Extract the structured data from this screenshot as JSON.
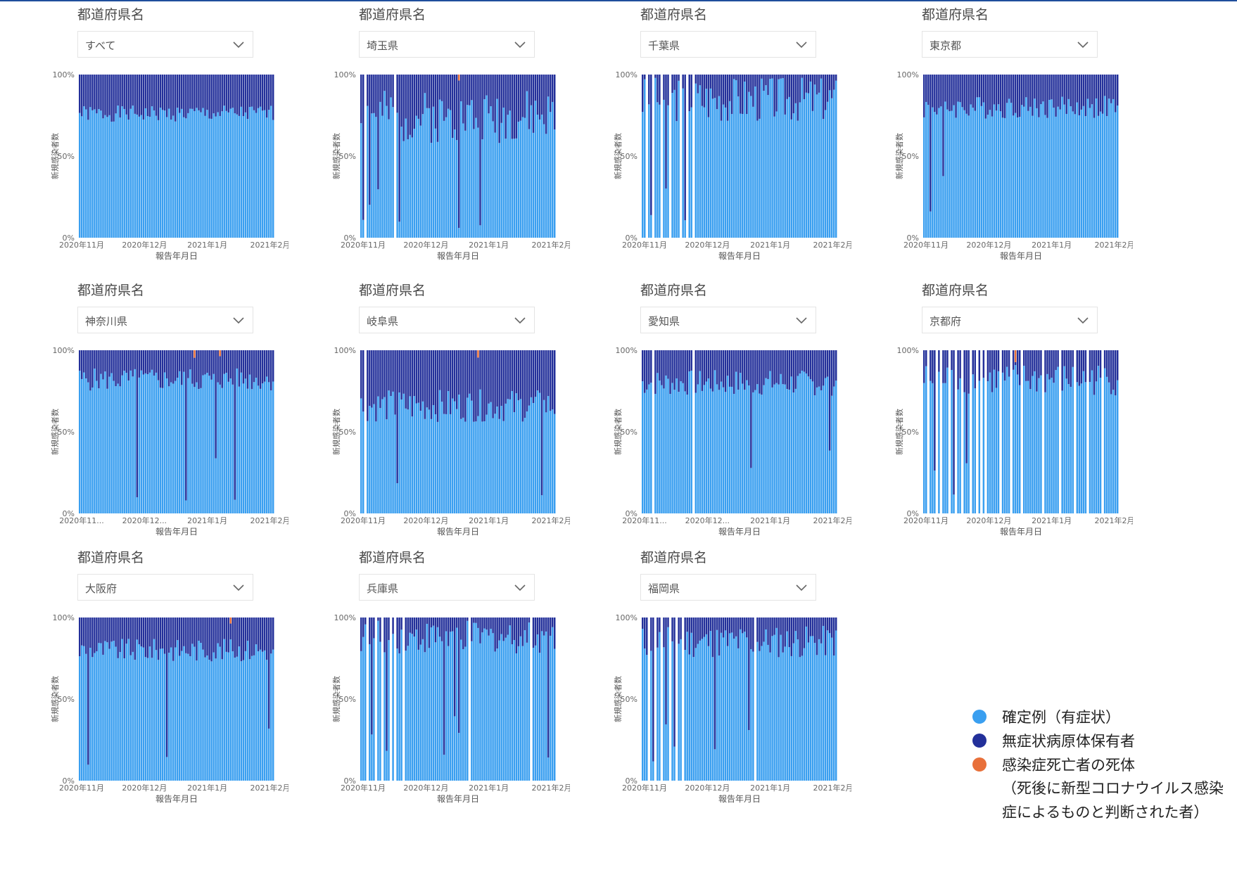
{
  "chart_data": {
    "type": "bar",
    "stacked_percent": true,
    "x_field": "報告年月日",
    "ylabel": "新規感染者数",
    "xlabel": "報告年月日",
    "yticks": [
      "0%",
      "50%",
      "100%"
    ],
    "ylim": [
      0,
      100
    ],
    "xticks_full": [
      "2020年11月",
      "2020年12月",
      "2021年1月",
      "2021年2月"
    ],
    "xticks_truncated": [
      "2020年11...",
      "2020年12...",
      "2021年1月",
      "2021年2月"
    ],
    "series": [
      {
        "name": "確定例（有症状）",
        "color": "#3a9ff0"
      },
      {
        "name": "無症状病原体保有者",
        "color": "#23309a"
      },
      {
        "name": "感染症死亡者の死体",
        "color": "#e8703a"
      }
    ],
    "charts": [
      {
        "slicer_title": "都道府県名",
        "slicer_value": "すべて",
        "truncated_ticks": false,
        "gaps": [],
        "sym_mean": 0.76,
        "sym_var": 0.05,
        "dips": [],
        "dead": [],
        "seed": 1
      },
      {
        "slicer_title": "都道府県名",
        "slicer_value": "埼玉県",
        "truncated_ticks": false,
        "gaps": [
          0.02,
          0.18
        ],
        "sym_mean": 0.74,
        "sym_var": 0.16,
        "dips": [
          0.01,
          0.04,
          0.09,
          0.2,
          0.5,
          0.62
        ],
        "dead": [
          0.51
        ],
        "seed": 2
      },
      {
        "slicer_title": "都道府県名",
        "slicer_value": "千葉県",
        "truncated_ticks": false,
        "gaps": [
          0.02,
          0.06,
          0.1,
          0.14,
          0.2,
          0.23,
          0.26
        ],
        "sym_mean": 0.85,
        "sym_var": 0.14,
        "dips": [
          0.04,
          0.12,
          0.22
        ],
        "dead": [],
        "seed": 3
      },
      {
        "slicer_title": "都道府県名",
        "slicer_value": "東京都",
        "truncated_ticks": false,
        "gaps": [],
        "sym_mean": 0.8,
        "sym_var": 0.07,
        "dips": [
          0.03,
          0.1
        ],
        "dead": [],
        "seed": 4
      },
      {
        "slicer_title": "都道府県名",
        "slicer_value": "神奈川県",
        "truncated_ticks": true,
        "gaps": [],
        "sym_mean": 0.82,
        "sym_var": 0.07,
        "dips": [
          0.3,
          0.55,
          0.7,
          0.8
        ],
        "dead": [
          0.59,
          0.72
        ],
        "seed": 5
      },
      {
        "slicer_title": "都道府県名",
        "slicer_value": "岐阜県",
        "truncated_ticks": false,
        "gaps": [
          0.02
        ],
        "sym_mean": 0.66,
        "sym_var": 0.1,
        "dips": [
          0.02,
          0.19,
          0.93
        ],
        "dead": [
          0.6
        ],
        "seed": 6
      },
      {
        "slicer_title": "都道府県名",
        "slicer_value": "愛知県",
        "truncated_ticks": true,
        "gaps": [
          0.06,
          0.26
        ],
        "sym_mean": 0.8,
        "sym_var": 0.08,
        "dips": [
          0.05,
          0.56,
          0.97
        ],
        "dead": [],
        "seed": 7
      },
      {
        "slicer_title": "都道府県名",
        "slicer_value": "京都府",
        "truncated_ticks": false,
        "gaps": [
          0.02,
          0.07,
          0.09,
          0.13,
          0.17,
          0.2,
          0.24,
          0.27,
          0.3,
          0.32,
          0.4,
          0.45,
          0.5,
          0.62,
          0.7,
          0.78,
          0.85,
          0.92
        ],
        "sym_mean": 0.82,
        "sym_var": 0.1,
        "dips": [
          0.05,
          0.15,
          0.22,
          0.28
        ],
        "dead": [
          0.47
        ],
        "seed": 8
      },
      {
        "slicer_title": "都道府県名",
        "slicer_value": "大阪府",
        "truncated_ticks": false,
        "gaps": [],
        "sym_mean": 0.8,
        "sym_var": 0.07,
        "dips": [
          0.04,
          0.45,
          0.98
        ],
        "dead": [
          0.78
        ],
        "seed": 9
      },
      {
        "slicer_title": "都道府県名",
        "slicer_value": "兵庫県",
        "truncated_ticks": false,
        "gaps": [
          0.03,
          0.08,
          0.11,
          0.15,
          0.18,
          0.22,
          0.56,
          0.88
        ],
        "sym_mean": 0.88,
        "sym_var": 0.1,
        "dips": [
          0.06,
          0.13,
          0.43,
          0.48,
          0.5,
          0.97
        ],
        "dead": [],
        "seed": 10
      },
      {
        "slicer_title": "都道府県名",
        "slicer_value": "福岡県",
        "truncated_ticks": false,
        "gaps": [
          0.03,
          0.07,
          0.1,
          0.14,
          0.18,
          0.21,
          0.58
        ],
        "sym_mean": 0.85,
        "sym_var": 0.1,
        "dips": [
          0.05,
          0.12,
          0.16,
          0.37,
          0.55
        ],
        "dead": [],
        "seed": 11
      }
    ]
  },
  "legend": {
    "items": [
      {
        "label": "確定例（有症状）",
        "color": "#3a9ff0"
      },
      {
        "label": "無症状病原体保有者",
        "color": "#23309a"
      },
      {
        "label": "感染症死亡者の死体",
        "color": "#e8703a"
      }
    ],
    "note_line1": "（死後に新型コロナウイルス感染",
    "note_line2": "症によるものと判断された者）"
  }
}
